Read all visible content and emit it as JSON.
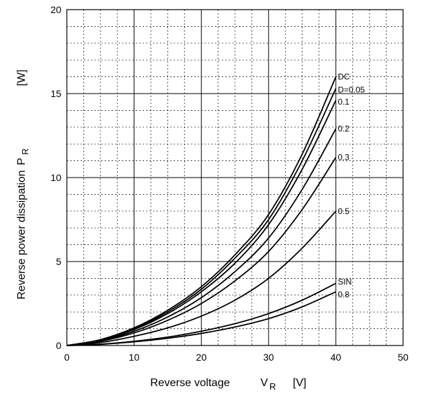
{
  "chart_data": {
    "type": "line",
    "title": "",
    "xlabel": {
      "text": "Reverse voltage",
      "symbol": "V",
      "subscript": "R",
      "unit": "[V]"
    },
    "ylabel": {
      "text": "Reverse power dissipation",
      "symbol": "P",
      "subscript": "R",
      "unit": "[W]"
    },
    "xlim": [
      0,
      50
    ],
    "ylim": [
      0,
      20
    ],
    "x_ticks": [
      "0",
      "10",
      "20",
      "30",
      "40",
      "50"
    ],
    "y_ticks": [
      "0",
      "5",
      "10",
      "15",
      "20"
    ],
    "grid": {
      "major": true,
      "minor_dashed": true,
      "minor_x_step": 2.5,
      "minor_y_step": 1
    },
    "x": [
      0,
      5,
      10,
      15,
      20,
      25,
      30,
      35,
      40
    ],
    "series": [
      {
        "name": "DC",
        "values": [
          0,
          0.35,
          1.05,
          2.1,
          3.5,
          5.4,
          7.8,
          11.4,
          16.0
        ]
      },
      {
        "name": "D=0.05",
        "values": [
          0,
          0.34,
          1.0,
          2.0,
          3.35,
          5.2,
          7.5,
          11.0,
          15.3
        ]
      },
      {
        "name": "0.1",
        "values": [
          0,
          0.32,
          0.95,
          1.9,
          3.2,
          4.9,
          7.2,
          10.5,
          14.6
        ]
      },
      {
        "name": "0.2",
        "values": [
          0,
          0.28,
          0.85,
          1.7,
          2.85,
          4.4,
          6.4,
          9.3,
          12.9
        ]
      },
      {
        "name": "0.3",
        "values": [
          0,
          0.25,
          0.75,
          1.5,
          2.5,
          3.85,
          5.6,
          8.1,
          11.2
        ]
      },
      {
        "name": "0.5",
        "values": [
          0,
          0.18,
          0.55,
          1.05,
          1.75,
          2.7,
          4.0,
          5.8,
          8.0
        ]
      },
      {
        "name": "SIN",
        "values": [
          0,
          0.08,
          0.25,
          0.5,
          0.85,
          1.3,
          1.9,
          2.7,
          3.7
        ]
      },
      {
        "name": "0.8",
        "values": [
          0,
          0.07,
          0.22,
          0.43,
          0.72,
          1.1,
          1.6,
          2.3,
          3.2
        ]
      }
    ],
    "legend": "inline labels at right end of curves"
  }
}
